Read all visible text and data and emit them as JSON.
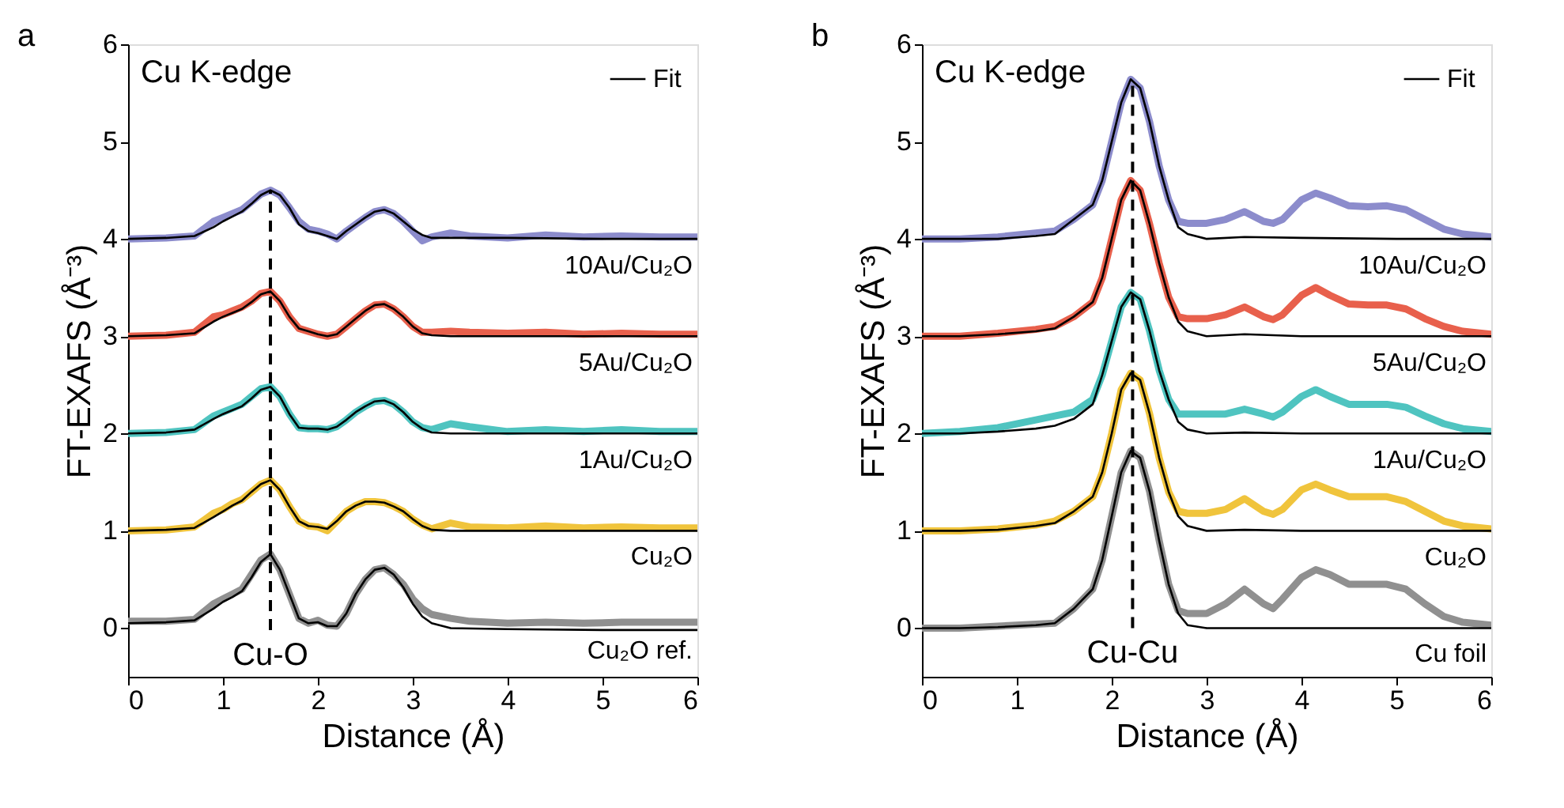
{
  "chart_data": [
    {
      "type": "line",
      "title": "a",
      "xlabel": "Distance (Å)",
      "ylabel": "FT-EXAFS (Å⁻³)",
      "xlim": [
        0,
        6
      ],
      "ylim": [
        -0.5,
        6
      ],
      "xticks": [
        0,
        1,
        2,
        3,
        4,
        5,
        6
      ],
      "yticks": [
        0,
        1,
        2,
        3,
        4,
        5,
        6
      ],
      "grid": false,
      "legend": "top right",
      "annotations": [
        "Cu K-edge"
      ],
      "ref_lines": [
        {
          "axis": "x",
          "value": 1.5,
          "label": "Cu-O",
          "line_style": "dashed",
          "color": "#000000"
        }
      ],
      "x": [
        0,
        0.4,
        0.7,
        0.9,
        1.0,
        1.1,
        1.2,
        1.3,
        1.4,
        1.5,
        1.6,
        1.7,
        1.8,
        1.9,
        2.0,
        2.1,
        2.2,
        2.3,
        2.4,
        2.5,
        2.6,
        2.7,
        2.8,
        2.9,
        3.0,
        3.1,
        3.2,
        3.4,
        3.6,
        4.0,
        4.4,
        4.8,
        5.2,
        5.6,
        6.0
      ],
      "series": [
        {
          "name": "10Au/Cu₂O",
          "color": "#8c8ccc",
          "values": [
            4.0,
            4.01,
            4.03,
            4.18,
            4.22,
            4.26,
            4.3,
            4.38,
            4.46,
            4.5,
            4.45,
            4.32,
            4.18,
            4.1,
            4.08,
            4.05,
            4.0,
            4.08,
            4.15,
            4.22,
            4.28,
            4.3,
            4.26,
            4.18,
            4.08,
            3.98,
            4.02,
            4.06,
            4.03,
            4.01,
            4.04,
            4.02,
            4.03,
            4.02,
            4.02
          ]
        },
        {
          "name": "5Au/Cu₂O",
          "color": "#e8604c",
          "values": [
            3.0,
            3.01,
            3.04,
            3.2,
            3.22,
            3.26,
            3.3,
            3.36,
            3.44,
            3.46,
            3.36,
            3.2,
            3.08,
            3.05,
            3.02,
            3.0,
            3.02,
            3.1,
            3.18,
            3.26,
            3.32,
            3.33,
            3.28,
            3.2,
            3.1,
            3.04,
            3.04,
            3.05,
            3.04,
            3.03,
            3.04,
            3.02,
            3.03,
            3.02,
            3.02
          ]
        },
        {
          "name": "1Au/Cu₂O",
          "color": "#4fc4c0",
          "values": [
            2.0,
            2.01,
            2.04,
            2.18,
            2.22,
            2.26,
            2.3,
            2.38,
            2.46,
            2.48,
            2.38,
            2.2,
            2.06,
            2.05,
            2.05,
            2.04,
            2.07,
            2.14,
            2.22,
            2.28,
            2.33,
            2.34,
            2.3,
            2.22,
            2.12,
            2.06,
            2.04,
            2.1,
            2.07,
            2.02,
            2.04,
            2.02,
            2.04,
            2.02,
            2.02
          ]
        },
        {
          "name": "Cu₂O",
          "color": "#f0c43c",
          "values": [
            1.0,
            1.01,
            1.04,
            1.18,
            1.22,
            1.28,
            1.32,
            1.4,
            1.48,
            1.52,
            1.42,
            1.25,
            1.1,
            1.05,
            1.04,
            1.0,
            1.1,
            1.2,
            1.26,
            1.3,
            1.3,
            1.29,
            1.25,
            1.2,
            1.12,
            1.06,
            1.02,
            1.08,
            1.04,
            1.03,
            1.05,
            1.03,
            1.04,
            1.03,
            1.03
          ]
        },
        {
          "name": "Cu₂O ref.",
          "color": "#909090",
          "values": [
            0.07,
            0.07,
            0.09,
            0.25,
            0.3,
            0.35,
            0.4,
            0.55,
            0.7,
            0.76,
            0.6,
            0.35,
            0.1,
            0.05,
            0.08,
            0.03,
            0.02,
            0.15,
            0.35,
            0.5,
            0.6,
            0.62,
            0.55,
            0.45,
            0.3,
            0.2,
            0.14,
            0.1,
            0.07,
            0.05,
            0.06,
            0.05,
            0.06,
            0.06,
            0.06
          ]
        },
        {
          "name": "Fit",
          "color": "#000000",
          "x": [
            0,
            0.4,
            0.7,
            0.9,
            1.0,
            1.1,
            1.2,
            1.3,
            1.4,
            1.5,
            1.6,
            1.7,
            1.8,
            1.9,
            2.0,
            2.1,
            2.2,
            2.3,
            2.4,
            2.5,
            2.6,
            2.7,
            2.8,
            2.9,
            3.0,
            3.1,
            3.2,
            3.4,
            4.0,
            5.0,
            6.0
          ],
          "values": [
            4.0,
            4.01,
            4.03,
            4.12,
            4.18,
            4.23,
            4.28,
            4.36,
            4.45,
            4.5,
            4.45,
            4.32,
            4.15,
            4.08,
            4.06,
            4.03,
            4.0,
            4.08,
            4.15,
            4.22,
            4.28,
            4.3,
            4.26,
            4.18,
            4.1,
            4.04,
            4.01,
            4.01,
            4.01,
            4.0,
            4.0
          ]
        },
        {
          "color": "#000000",
          "x": [
            0,
            0.4,
            0.7,
            0.9,
            1.0,
            1.1,
            1.2,
            1.3,
            1.4,
            1.5,
            1.6,
            1.7,
            1.8,
            1.9,
            2.0,
            2.1,
            2.2,
            2.3,
            2.4,
            2.5,
            2.6,
            2.7,
            2.8,
            2.9,
            3.0,
            3.1,
            3.2,
            3.4,
            4.0,
            5.0,
            6.0
          ],
          "values": [
            3.0,
            3.01,
            3.03,
            3.15,
            3.2,
            3.24,
            3.28,
            3.35,
            3.43,
            3.46,
            3.36,
            3.2,
            3.08,
            3.05,
            3.02,
            3.0,
            3.02,
            3.1,
            3.18,
            3.26,
            3.32,
            3.33,
            3.28,
            3.2,
            3.1,
            3.03,
            3.01,
            3.0,
            3.0,
            3.0,
            3.0
          ]
        },
        {
          "color": "#000000",
          "x": [
            0,
            0.4,
            0.7,
            0.9,
            1.0,
            1.1,
            1.2,
            1.3,
            1.4,
            1.5,
            1.6,
            1.7,
            1.8,
            1.9,
            2.0,
            2.1,
            2.2,
            2.3,
            2.4,
            2.5,
            2.6,
            2.7,
            2.8,
            2.9,
            3.0,
            3.1,
            3.2,
            3.4,
            4.0,
            5.0,
            6.0
          ],
          "values": [
            2.0,
            2.01,
            2.04,
            2.15,
            2.2,
            2.24,
            2.28,
            2.36,
            2.45,
            2.48,
            2.38,
            2.2,
            2.06,
            2.05,
            2.05,
            2.04,
            2.07,
            2.14,
            2.22,
            2.28,
            2.33,
            2.34,
            2.3,
            2.22,
            2.12,
            2.05,
            2.01,
            2.0,
            2.0,
            2.0,
            2.0
          ]
        },
        {
          "color": "#000000",
          "x": [
            0,
            0.4,
            0.7,
            0.9,
            1.0,
            1.1,
            1.2,
            1.3,
            1.4,
            1.5,
            1.6,
            1.7,
            1.8,
            1.9,
            2.0,
            2.1,
            2.2,
            2.3,
            2.4,
            2.5,
            2.6,
            2.7,
            2.8,
            2.9,
            3.0,
            3.1,
            3.2,
            3.4,
            4.0,
            5.0,
            6.0
          ],
          "values": [
            1.0,
            1.01,
            1.03,
            1.14,
            1.2,
            1.26,
            1.31,
            1.4,
            1.48,
            1.52,
            1.42,
            1.25,
            1.1,
            1.05,
            1.04,
            1.02,
            1.1,
            1.2,
            1.26,
            1.3,
            1.3,
            1.29,
            1.25,
            1.2,
            1.12,
            1.05,
            1.01,
            1.0,
            1.0,
            1.0,
            1.0
          ]
        },
        {
          "color": "#000000",
          "x": [
            0,
            0.4,
            0.7,
            0.9,
            1.0,
            1.1,
            1.2,
            1.3,
            1.4,
            1.5,
            1.6,
            1.7,
            1.8,
            1.9,
            2.0,
            2.1,
            2.2,
            2.3,
            2.4,
            2.5,
            2.6,
            2.7,
            2.8,
            2.9,
            3.0,
            3.1,
            3.2,
            3.4,
            4.0,
            5.0,
            6.0
          ],
          "values": [
            0.05,
            0.06,
            0.08,
            0.2,
            0.27,
            0.32,
            0.38,
            0.52,
            0.68,
            0.76,
            0.6,
            0.35,
            0.1,
            0.05,
            0.06,
            0.02,
            0.02,
            0.15,
            0.35,
            0.5,
            0.6,
            0.62,
            0.55,
            0.42,
            0.25,
            0.12,
            0.05,
            0.0,
            -0.01,
            -0.02,
            -0.02
          ]
        }
      ]
    },
    {
      "type": "line",
      "title": "b",
      "xlabel": "Distance (Å)",
      "ylabel": "FT-EXAFS (Å⁻³)",
      "xlim": [
        0,
        6
      ],
      "ylim": [
        -0.5,
        6
      ],
      "xticks": [
        0,
        1,
        2,
        3,
        4,
        5,
        6
      ],
      "yticks": [
        0,
        1,
        2,
        3,
        4,
        5,
        6
      ],
      "grid": false,
      "legend": "top right",
      "annotations": [
        "Cu K-edge"
      ],
      "ref_lines": [
        {
          "axis": "x",
          "value": 2.22,
          "label": "Cu-Cu",
          "line_style": "dashed",
          "color": "#000000"
        }
      ],
      "x": [
        0,
        0.4,
        0.8,
        1.2,
        1.4,
        1.6,
        1.8,
        1.9,
        2.0,
        2.1,
        2.2,
        2.3,
        2.4,
        2.5,
        2.6,
        2.7,
        2.8,
        3.0,
        3.2,
        3.4,
        3.6,
        3.7,
        3.8,
        4.0,
        4.15,
        4.3,
        4.5,
        4.7,
        4.9,
        5.1,
        5.3,
        5.5,
        5.7,
        6.0
      ],
      "series": [
        {
          "name": "10Au/Cu₂O",
          "color": "#8c8ccc",
          "values": [
            4.0,
            4.0,
            4.02,
            4.06,
            4.08,
            4.2,
            4.35,
            4.6,
            5.0,
            5.4,
            5.64,
            5.55,
            5.2,
            4.75,
            4.4,
            4.18,
            4.16,
            4.16,
            4.2,
            4.28,
            4.18,
            4.16,
            4.2,
            4.4,
            4.47,
            4.42,
            4.34,
            4.33,
            4.34,
            4.3,
            4.2,
            4.1,
            4.05,
            4.02
          ]
        },
        {
          "name": "5Au/Cu₂O",
          "color": "#e8604c",
          "values": [
            3.0,
            3.0,
            3.03,
            3.07,
            3.1,
            3.2,
            3.35,
            3.6,
            4.0,
            4.4,
            4.6,
            4.5,
            4.15,
            3.75,
            3.4,
            3.2,
            3.18,
            3.18,
            3.22,
            3.3,
            3.2,
            3.17,
            3.22,
            3.42,
            3.5,
            3.42,
            3.33,
            3.32,
            3.32,
            3.28,
            3.18,
            3.1,
            3.05,
            3.02
          ]
        },
        {
          "name": "1Au/Cu₂O",
          "color": "#4fc4c0",
          "values": [
            2.0,
            2.02,
            2.06,
            2.14,
            2.18,
            2.22,
            2.35,
            2.6,
            2.95,
            3.3,
            3.45,
            3.38,
            3.05,
            2.65,
            2.35,
            2.2,
            2.2,
            2.2,
            2.2,
            2.25,
            2.2,
            2.17,
            2.22,
            2.38,
            2.45,
            2.38,
            2.3,
            2.3,
            2.3,
            2.27,
            2.18,
            2.1,
            2.05,
            2.02
          ]
        },
        {
          "name": "Cu₂O",
          "color": "#f0c43c",
          "values": [
            1.0,
            1.0,
            1.02,
            1.06,
            1.1,
            1.2,
            1.35,
            1.6,
            2.0,
            2.45,
            2.62,
            2.55,
            2.2,
            1.75,
            1.4,
            1.2,
            1.18,
            1.18,
            1.22,
            1.33,
            1.2,
            1.17,
            1.22,
            1.42,
            1.48,
            1.42,
            1.35,
            1.35,
            1.35,
            1.3,
            1.2,
            1.1,
            1.05,
            1.02
          ]
        },
        {
          "name": "Cu foil",
          "color": "#909090",
          "values": [
            0.0,
            0.0,
            0.02,
            0.04,
            0.05,
            0.2,
            0.4,
            0.7,
            1.15,
            1.6,
            1.82,
            1.75,
            1.4,
            0.9,
            0.45,
            0.18,
            0.15,
            0.15,
            0.25,
            0.4,
            0.25,
            0.2,
            0.3,
            0.52,
            0.6,
            0.55,
            0.45,
            0.45,
            0.45,
            0.4,
            0.25,
            0.12,
            0.06,
            0.03
          ]
        },
        {
          "name": "Fit",
          "color": "#000000",
          "x": [
            0,
            0.4,
            0.8,
            1.2,
            1.4,
            1.6,
            1.8,
            1.9,
            2.0,
            2.1,
            2.2,
            2.3,
            2.4,
            2.5,
            2.6,
            2.7,
            2.8,
            3.0,
            3.4,
            4.0,
            5.0,
            6.0
          ],
          "values": [
            4.0,
            4.0,
            4.0,
            4.03,
            4.05,
            4.2,
            4.35,
            4.6,
            5.0,
            5.4,
            5.64,
            5.55,
            5.2,
            4.75,
            4.4,
            4.12,
            4.05,
            4.0,
            4.02,
            4.01,
            4.0,
            4.0
          ]
        },
        {
          "color": "#000000",
          "x": [
            0,
            0.4,
            0.8,
            1.2,
            1.4,
            1.6,
            1.8,
            1.9,
            2.0,
            2.1,
            2.2,
            2.3,
            2.4,
            2.5,
            2.6,
            2.7,
            2.8,
            3.0,
            3.4,
            4.0,
            5.0,
            6.0
          ],
          "values": [
            3.0,
            3.0,
            3.02,
            3.05,
            3.08,
            3.2,
            3.35,
            3.6,
            4.0,
            4.4,
            4.6,
            4.5,
            4.15,
            3.75,
            3.4,
            3.15,
            3.05,
            3.0,
            3.02,
            3.0,
            3.0,
            3.0
          ]
        },
        {
          "color": "#000000",
          "x": [
            0,
            0.4,
            0.8,
            1.2,
            1.4,
            1.6,
            1.8,
            1.9,
            2.0,
            2.1,
            2.2,
            2.3,
            2.4,
            2.5,
            2.6,
            2.7,
            2.8,
            3.0,
            3.4,
            4.0,
            5.0,
            6.0
          ],
          "values": [
            2.0,
            2.0,
            2.02,
            2.05,
            2.08,
            2.15,
            2.3,
            2.6,
            2.95,
            3.3,
            3.45,
            3.38,
            3.05,
            2.65,
            2.35,
            2.12,
            2.04,
            2.0,
            2.01,
            2.0,
            2.0,
            2.0
          ]
        },
        {
          "color": "#000000",
          "x": [
            0,
            0.4,
            0.8,
            1.2,
            1.4,
            1.6,
            1.8,
            1.9,
            2.0,
            2.1,
            2.2,
            2.3,
            2.4,
            2.5,
            2.6,
            2.7,
            2.8,
            3.0,
            3.4,
            4.0,
            5.0,
            6.0
          ],
          "values": [
            1.0,
            1.0,
            1.01,
            1.05,
            1.08,
            1.2,
            1.35,
            1.6,
            2.0,
            2.45,
            2.62,
            2.55,
            2.2,
            1.75,
            1.4,
            1.15,
            1.05,
            1.0,
            1.01,
            1.0,
            1.0,
            1.0
          ]
        },
        {
          "color": "#000000",
          "x": [
            0,
            0.4,
            0.8,
            1.2,
            1.4,
            1.6,
            1.8,
            1.9,
            2.0,
            2.1,
            2.2,
            2.3,
            2.4,
            2.5,
            2.6,
            2.7,
            2.8,
            3.0,
            3.4,
            4.0,
            5.0,
            6.0
          ],
          "values": [
            0.0,
            0.0,
            0.01,
            0.03,
            0.05,
            0.2,
            0.4,
            0.7,
            1.15,
            1.6,
            1.82,
            1.75,
            1.4,
            0.9,
            0.45,
            0.15,
            0.03,
            0.0,
            0.0,
            0.0,
            0.0,
            0.0
          ]
        }
      ]
    }
  ]
}
